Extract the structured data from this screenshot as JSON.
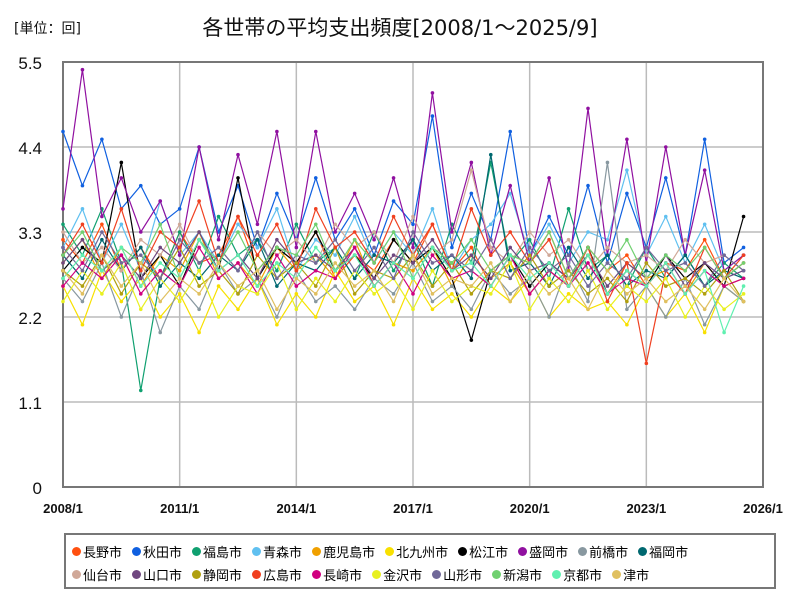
{
  "chart_data": {
    "type": "line",
    "title": "各世帯の平均支出頻度[2008/1～2025/9]",
    "unit_label": "[単位：回]",
    "xlabel": "",
    "ylabel": "",
    "ylim": [
      0,
      5.5
    ],
    "yticks": [
      "0",
      "1.1",
      "2.2",
      "3.3",
      "4.4",
      "5.5"
    ],
    "xticks": [
      "2008/1",
      "2011/1",
      "2014/1",
      "2017/1",
      "2020/1",
      "2023/1",
      "2026/1"
    ],
    "x_start": "2008/1",
    "x_step_months": 6,
    "grid": true,
    "legend_position": "bottom",
    "series": [
      {
        "name": "長野市",
        "color": "#ff5010",
        "values": [
          3.2,
          2.9,
          3.4,
          2.8,
          3.1,
          2.7,
          3.3,
          2.9,
          3.0,
          3.5,
          2.8,
          3.1,
          2.9,
          3.3,
          2.7,
          3.0,
          2.8,
          3.2,
          2.9,
          3.4,
          2.8,
          3.1,
          2.6,
          3.0,
          2.9,
          3.3,
          2.7,
          3.1,
          2.8,
          3.0,
          2.6,
          2.9,
          2.8,
          3.2,
          2.7,
          2.9
        ]
      },
      {
        "name": "秋田市",
        "color": "#1060e0",
        "values": [
          4.6,
          3.9,
          4.5,
          3.6,
          3.9,
          3.4,
          3.6,
          4.4,
          3.3,
          3.9,
          3.1,
          3.8,
          3.2,
          4.0,
          3.2,
          3.6,
          3.0,
          3.7,
          3.4,
          4.8,
          3.1,
          3.8,
          3.2,
          4.6,
          3.0,
          3.5,
          3.0,
          3.9,
          2.9,
          3.8,
          3.1,
          4.0,
          3.0,
          4.5,
          2.9,
          3.1
        ]
      },
      {
        "name": "福島市",
        "color": "#10a070",
        "values": [
          3.4,
          3.0,
          3.6,
          2.9,
          1.25,
          2.7,
          3.3,
          2.8,
          3.5,
          3.0,
          3.2,
          2.8,
          3.4,
          2.9,
          3.1,
          2.7,
          3.3,
          2.8,
          3.2,
          2.6,
          3.4,
          2.9,
          4.2,
          2.9,
          3.2,
          2.7,
          3.6,
          2.8,
          3.0,
          2.6,
          3.1,
          2.7,
          3.0,
          2.6,
          2.9,
          2.7
        ]
      },
      {
        "name": "青森市",
        "color": "#60c0f0",
        "values": [
          3.1,
          3.6,
          2.9,
          3.4,
          2.8,
          3.7,
          3.0,
          3.3,
          2.9,
          3.4,
          3.1,
          3.6,
          2.8,
          3.2,
          3.0,
          3.5,
          2.9,
          3.3,
          3.0,
          3.6,
          2.8,
          3.2,
          3.4,
          3.8,
          3.0,
          3.4,
          2.9,
          3.3,
          3.2,
          4.1,
          3.0,
          3.5,
          2.9,
          3.4,
          2.8,
          3.0
        ]
      },
      {
        "name": "鹿児島市",
        "color": "#f0a000",
        "values": [
          2.9,
          3.2,
          2.7,
          3.1,
          2.6,
          3.0,
          2.8,
          3.3,
          2.7,
          2.9,
          2.6,
          3.1,
          2.8,
          3.0,
          2.7,
          3.2,
          2.6,
          2.9,
          2.8,
          3.1,
          2.6,
          3.0,
          2.7,
          2.9,
          2.5,
          2.8,
          2.6,
          3.0,
          2.5,
          2.9,
          2.7,
          2.8,
          2.5,
          2.9,
          2.6,
          2.7
        ]
      },
      {
        "name": "北九州市",
        "color": "#f8e000",
        "values": [
          2.6,
          2.1,
          2.8,
          2.4,
          2.7,
          2.2,
          2.5,
          2.0,
          2.6,
          2.3,
          2.7,
          2.1,
          2.5,
          2.2,
          2.8,
          2.4,
          2.6,
          2.1,
          2.7,
          2.3,
          2.5,
          2.2,
          2.6,
          2.4,
          2.7,
          2.2,
          2.5,
          2.3,
          2.4,
          2.1,
          2.6,
          2.2,
          2.5,
          2.0,
          2.6,
          2.4
        ]
      },
      {
        "name": "松江市",
        "color": "#000000",
        "values": [
          2.8,
          3.1,
          2.9,
          4.2,
          2.7,
          3.0,
          2.6,
          3.2,
          2.8,
          4.0,
          2.7,
          3.1,
          2.9,
          3.3,
          2.8,
          3.0,
          2.7,
          3.2,
          2.9,
          3.1,
          2.7,
          1.9,
          2.8,
          3.0,
          2.6,
          2.9,
          2.7,
          3.1,
          2.5,
          2.8,
          2.6,
          3.0,
          2.7,
          2.9,
          2.6,
          3.5
        ]
      },
      {
        "name": "盛岡市",
        "color": "#9010a0",
        "values": [
          3.6,
          5.4,
          3.5,
          4.0,
          3.3,
          3.7,
          3.0,
          4.4,
          3.2,
          4.3,
          3.4,
          4.6,
          3.1,
          4.6,
          3.3,
          3.8,
          3.2,
          4.0,
          3.1,
          5.1,
          3.3,
          4.2,
          3.0,
          3.9,
          2.9,
          4.0,
          2.8,
          4.9,
          3.0,
          4.5,
          2.9,
          4.4,
          3.0,
          4.1,
          2.8,
          3.0
        ]
      },
      {
        "name": "前橋市",
        "color": "#8898a0",
        "values": [
          2.7,
          2.4,
          2.9,
          2.2,
          2.8,
          2.0,
          2.6,
          2.3,
          2.9,
          2.5,
          2.7,
          2.2,
          2.8,
          2.4,
          2.6,
          2.3,
          2.7,
          2.5,
          2.9,
          2.4,
          2.6,
          2.3,
          2.8,
          2.5,
          2.7,
          2.2,
          2.9,
          2.4,
          4.2,
          2.3,
          2.6,
          2.2,
          2.7,
          2.1,
          2.6,
          2.4
        ]
      },
      {
        "name": "福岡市",
        "color": "#006870",
        "values": [
          3.0,
          2.7,
          3.2,
          2.8,
          3.1,
          2.6,
          2.9,
          2.7,
          3.0,
          2.8,
          3.2,
          2.6,
          2.9,
          2.8,
          3.1,
          2.7,
          3.0,
          2.9,
          3.2,
          2.8,
          3.0,
          2.7,
          4.3,
          2.8,
          2.9,
          2.6,
          3.1,
          2.7,
          3.0,
          2.6,
          2.8,
          2.7,
          3.0,
          2.6,
          2.8,
          2.7
        ]
      },
      {
        "name": "仙台市",
        "color": "#d0a898",
        "values": [
          3.3,
          2.9,
          3.1,
          2.8,
          3.2,
          3.0,
          3.4,
          2.9,
          3.1,
          2.8,
          3.3,
          3.0,
          3.2,
          2.9,
          3.4,
          3.1,
          3.3,
          2.9,
          3.5,
          3.0,
          3.2,
          4.1,
          3.1,
          2.9,
          3.3,
          3.0,
          3.2,
          2.8,
          3.1,
          2.9,
          3.0,
          2.8,
          3.2,
          2.9,
          3.0,
          2.8
        ]
      },
      {
        "name": "山口市",
        "color": "#704880",
        "values": [
          2.9,
          3.2,
          2.8,
          3.0,
          2.7,
          3.1,
          2.9,
          3.3,
          2.8,
          3.0,
          2.7,
          3.2,
          2.9,
          3.0,
          2.8,
          3.1,
          2.7,
          3.0,
          2.9,
          3.2,
          2.8,
          3.0,
          2.7,
          3.1,
          2.8,
          2.9,
          2.7,
          3.0,
          2.6,
          2.9,
          2.7,
          3.0,
          2.6,
          2.9,
          2.7,
          2.8
        ]
      },
      {
        "name": "静岡市",
        "color": "#b0a010",
        "values": [
          2.8,
          2.6,
          3.0,
          2.5,
          2.9,
          2.7,
          3.1,
          2.6,
          2.8,
          2.5,
          3.0,
          2.7,
          2.9,
          2.6,
          3.1,
          2.5,
          2.8,
          2.7,
          3.0,
          2.6,
          2.9,
          2.5,
          2.8,
          2.7,
          3.0,
          2.6,
          2.8,
          2.5,
          2.7,
          2.4,
          2.9,
          2.6,
          2.7,
          2.5,
          2.8,
          2.4
        ]
      },
      {
        "name": "広島市",
        "color": "#f04020",
        "values": [
          3.0,
          3.4,
          2.9,
          3.6,
          2.8,
          3.3,
          3.1,
          3.7,
          2.9,
          3.5,
          3.0,
          3.4,
          2.8,
          3.6,
          3.1,
          3.3,
          2.9,
          3.5,
          3.0,
          3.4,
          2.8,
          3.6,
          3.0,
          3.3,
          2.9,
          3.2,
          2.6,
          3.1,
          2.4,
          2.9,
          1.6,
          2.8,
          2.5,
          3.1,
          2.7,
          3.0
        ]
      },
      {
        "name": "長崎市",
        "color": "#d00080",
        "values": [
          2.6,
          2.9,
          2.7,
          3.0,
          2.5,
          2.8,
          2.6,
          3.1,
          2.7,
          2.9,
          2.5,
          3.0,
          2.6,
          2.8,
          2.7,
          3.1,
          2.6,
          2.9,
          2.5,
          3.0,
          2.7,
          2.8,
          2.6,
          3.0,
          2.5,
          2.8,
          2.6,
          2.9,
          2.5,
          2.7,
          2.6,
          2.9,
          2.5,
          2.8,
          2.6,
          2.7
        ]
      },
      {
        "name": "金沢市",
        "color": "#e8f020",
        "values": [
          2.4,
          2.8,
          2.5,
          2.9,
          2.3,
          2.7,
          2.4,
          2.8,
          2.2,
          2.6,
          2.5,
          2.9,
          2.3,
          2.7,
          2.4,
          2.8,
          2.5,
          2.7,
          2.3,
          2.8,
          2.4,
          2.6,
          2.5,
          2.9,
          2.3,
          2.7,
          2.4,
          2.8,
          2.3,
          2.6,
          2.4,
          2.7,
          2.2,
          2.6,
          2.3,
          2.5
        ]
      },
      {
        "name": "山形市",
        "color": "#706898",
        "values": [
          3.1,
          2.8,
          3.3,
          2.9,
          3.0,
          2.7,
          3.2,
          2.9,
          3.1,
          2.8,
          3.3,
          2.7,
          3.0,
          2.9,
          3.2,
          2.8,
          3.1,
          2.7,
          3.3,
          2.9,
          3.0,
          2.8,
          3.2,
          2.7,
          3.1,
          2.8,
          3.0,
          2.6,
          2.9,
          2.7,
          3.1,
          2.8,
          2.9,
          2.6,
          3.0,
          2.8
        ]
      },
      {
        "name": "新潟市",
        "color": "#70d070",
        "values": [
          3.0,
          3.3,
          2.8,
          3.1,
          2.9,
          3.4,
          2.7,
          3.2,
          2.9,
          3.3,
          2.8,
          3.1,
          3.0,
          3.4,
          2.8,
          3.2,
          2.9,
          3.3,
          2.7,
          3.1,
          2.9,
          3.2,
          2.8,
          3.0,
          2.9,
          3.3,
          2.7,
          3.1,
          2.8,
          3.2,
          2.7,
          3.0,
          2.8,
          3.1,
          2.7,
          2.9
        ]
      },
      {
        "name": "京都市",
        "color": "#60f0b0",
        "values": [
          2.7,
          3.0,
          2.8,
          3.1,
          2.6,
          2.9,
          2.7,
          3.2,
          2.8,
          3.0,
          2.6,
          2.9,
          2.7,
          3.1,
          2.8,
          3.0,
          2.6,
          2.9,
          2.7,
          3.1,
          2.8,
          2.9,
          2.6,
          3.0,
          2.7,
          2.9,
          2.6,
          3.0,
          2.5,
          2.8,
          2.6,
          2.9,
          2.5,
          2.8,
          2.0,
          2.6
        ]
      },
      {
        "name": "津市",
        "color": "#e0c060",
        "values": [
          2.8,
          2.5,
          3.0,
          2.6,
          2.9,
          2.4,
          2.7,
          2.5,
          2.9,
          2.6,
          2.8,
          2.3,
          2.7,
          2.5,
          2.9,
          2.6,
          2.8,
          2.4,
          3.0,
          2.5,
          2.7,
          2.6,
          2.9,
          2.4,
          2.8,
          2.5,
          2.7,
          2.3,
          2.8,
          2.5,
          2.7,
          2.4,
          2.6,
          2.3,
          2.7,
          2.4
        ]
      }
    ]
  }
}
